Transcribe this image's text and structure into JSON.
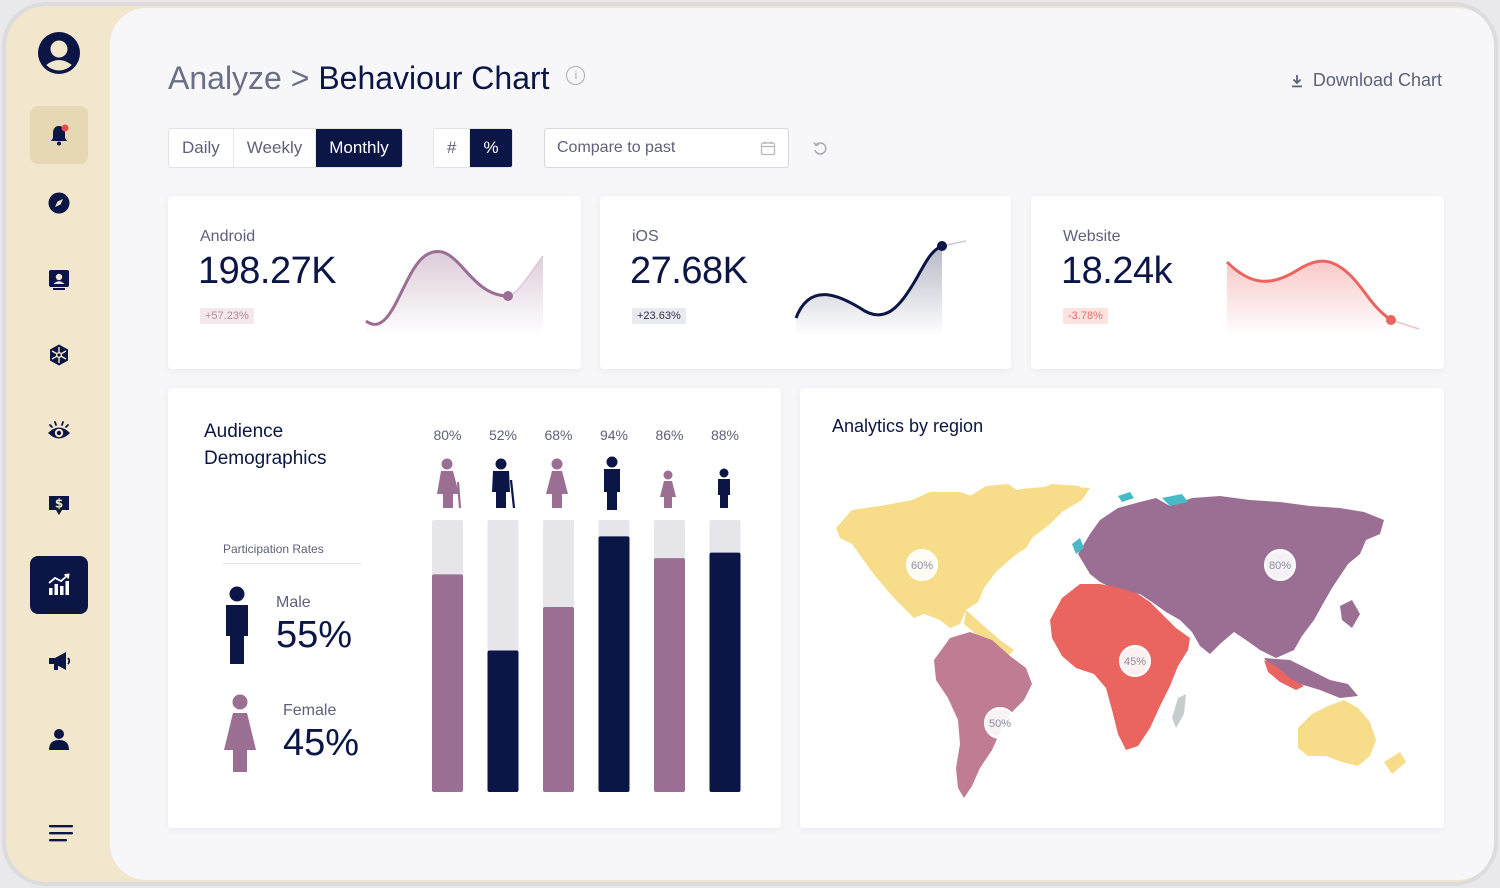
{
  "colors": {
    "navy": "#0b1546",
    "mauve": "#9b6e94",
    "red": "#ea6460",
    "yellow": "#f7dd8a",
    "pink": "#c07c92",
    "grey": "#e6e6ea"
  },
  "sidebar": {
    "logo": "user-circle-logo",
    "items": [
      {
        "name": "notifications",
        "icon": "bell-icon",
        "state": "hover"
      },
      {
        "name": "explore",
        "icon": "compass-icon",
        "state": "normal"
      },
      {
        "name": "profile-card",
        "icon": "id-card-icon",
        "state": "normal"
      },
      {
        "name": "network",
        "icon": "hexagon-network-icon",
        "state": "normal"
      },
      {
        "name": "watch",
        "icon": "eye-icon",
        "state": "normal"
      },
      {
        "name": "billing",
        "icon": "dollar-chat-icon",
        "state": "normal"
      },
      {
        "name": "analytics",
        "icon": "bar-chart-icon",
        "state": "active"
      },
      {
        "name": "campaigns",
        "icon": "megaphone-icon",
        "state": "normal"
      },
      {
        "name": "account",
        "icon": "person-icon",
        "state": "normal"
      }
    ],
    "menu_icon": "hamburger-menu-icon"
  },
  "header": {
    "crumb": "Analyze",
    "separator": ">",
    "title": "Behaviour Chart",
    "download_label": "Download Chart"
  },
  "filters": {
    "periods": [
      "Daily",
      "Weekly",
      "Monthly"
    ],
    "selected_period": "Monthly",
    "modes": [
      "#",
      "%"
    ],
    "selected_mode": "%",
    "compare_placeholder": "Compare to past"
  },
  "kpis": [
    {
      "label": "Android",
      "value": "198.27K",
      "change": "+57.23%",
      "color": "#9b6e94",
      "badge_bg": "#f4e8ec",
      "badge_fg": "#b48a9a"
    },
    {
      "label": "iOS",
      "value": "27.68K",
      "change": "+23.63%",
      "color": "#0b1546",
      "badge_bg": "#e9eaee",
      "badge_fg": "#2d3250"
    },
    {
      "label": "Website",
      "value": "18.24k",
      "change": "-3.78%",
      "color": "#ea6460",
      "badge_bg": "#fde2e0",
      "badge_fg": "#e0706b"
    }
  ],
  "demographics": {
    "title": "Audience Demographics",
    "rates_label": "Participation Rates",
    "male_label": "Male",
    "male_value": "55%",
    "female_label": "Female",
    "female_value": "45%"
  },
  "chart_data": {
    "type": "bar",
    "categories": [
      "Elderly female",
      "Elderly male",
      "Adult female",
      "Adult male",
      "Girl",
      "Boy"
    ],
    "values": [
      80,
      52,
      68,
      94,
      86,
      88
    ],
    "labels": [
      "80%",
      "52%",
      "68%",
      "94%",
      "86%",
      "88%"
    ],
    "ylim": [
      0,
      100
    ],
    "title": ""
  },
  "region": {
    "title": "Analytics by region",
    "markers": [
      {
        "name": "north-america",
        "label": "60%"
      },
      {
        "name": "asia-europe",
        "label": "80%"
      },
      {
        "name": "africa",
        "label": "45%"
      },
      {
        "name": "south-america",
        "label": "50%"
      }
    ]
  }
}
